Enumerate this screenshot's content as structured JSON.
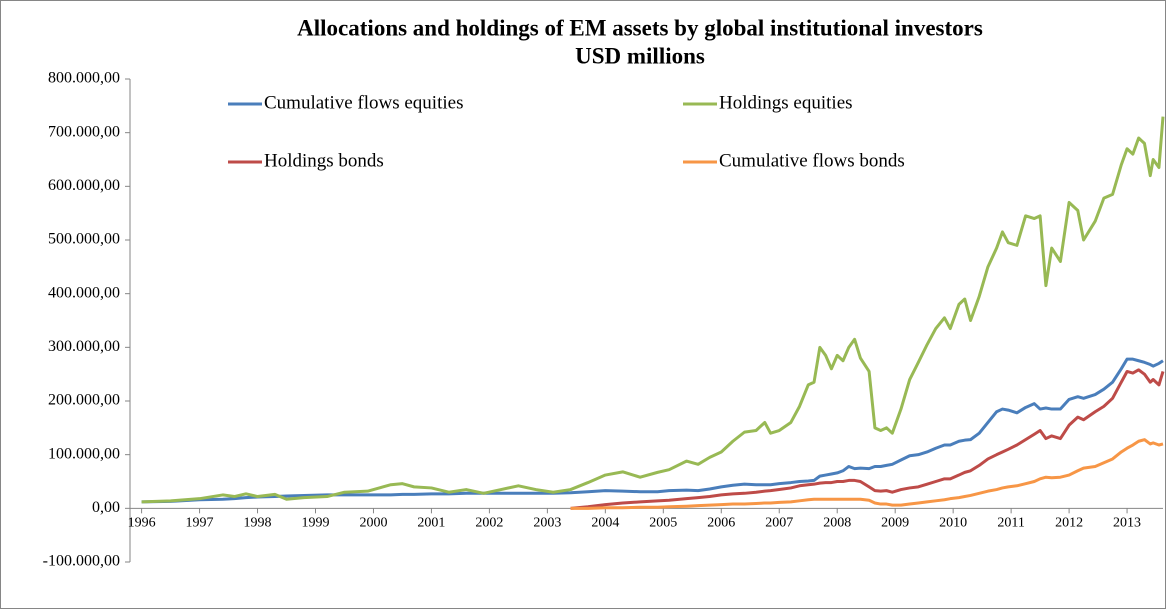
{
  "chart_data": {
    "type": "line",
    "title": "Allocations and holdings of EM assets by global institutional investors",
    "subtitle": "USD millions",
    "x": [
      1996.0,
      1996.5,
      1997.0,
      1997.4,
      1997.6,
      1997.8,
      1998.0,
      1998.3,
      1998.5,
      1998.8,
      1999.2,
      1999.5,
      1999.9,
      2000.3,
      2000.5,
      2000.7,
      2001.0,
      2001.3,
      2001.6,
      2001.9,
      2002.2,
      2002.5,
      2002.8,
      2003.1,
      2003.4,
      2003.7,
      2004.0,
      2004.3,
      2004.6,
      2004.9,
      2005.1,
      2005.4,
      2005.6,
      2005.8,
      2006.0,
      2006.2,
      2006.4,
      2006.6,
      2006.75,
      2006.85,
      2007.0,
      2007.2,
      2007.35,
      2007.5,
      2007.6,
      2007.7,
      2007.8,
      2007.9,
      2008.0,
      2008.1,
      2008.2,
      2008.3,
      2008.4,
      2008.55,
      2008.65,
      2008.75,
      2008.85,
      2008.95,
      2009.1,
      2009.25,
      2009.4,
      2009.55,
      2009.7,
      2009.85,
      2009.95,
      2010.1,
      2010.2,
      2010.3,
      2010.45,
      2010.6,
      2010.75,
      2010.85,
      2010.95,
      2011.1,
      2011.25,
      2011.4,
      2011.5,
      2011.6,
      2011.7,
      2011.85,
      2012.0,
      2012.15,
      2012.25,
      2012.45,
      2012.6,
      2012.75,
      2012.9,
      2013.0,
      2013.1,
      2013.2,
      2013.3,
      2013.4,
      2013.45,
      2013.55,
      2013.62
    ],
    "series": [
      {
        "name": "Cumulative flows equities",
        "color": "#4a7ebb",
        "values": [
          12000,
          13000,
          16000,
          17000,
          18000,
          20000,
          21000,
          22000,
          23000,
          24000,
          25000,
          25000,
          25000,
          25000,
          26000,
          26000,
          27000,
          27000,
          28000,
          28000,
          28000,
          28000,
          28000,
          28000,
          29000,
          31000,
          33000,
          32000,
          31000,
          31000,
          33000,
          34000,
          33000,
          36000,
          40000,
          43000,
          45000,
          44000,
          44000,
          44000,
          46000,
          48000,
          50000,
          51000,
          52000,
          60000,
          62000,
          64000,
          66000,
          70000,
          78000,
          74000,
          75000,
          74000,
          78000,
          78000,
          80000,
          82000,
          90000,
          98000,
          100000,
          105000,
          112000,
          118000,
          118000,
          125000,
          127000,
          128000,
          140000,
          160000,
          180000,
          185000,
          183000,
          178000,
          188000,
          195000,
          185000,
          187000,
          185000,
          185000,
          203000,
          208000,
          205000,
          212000,
          222000,
          235000,
          260000,
          278000,
          278000,
          275000,
          272000,
          268000,
          265000,
          270000,
          275000
        ]
      },
      {
        "name": "Holdings equities",
        "color": "#98b954",
        "values": [
          12000,
          14000,
          18000,
          25000,
          22000,
          27000,
          22000,
          26000,
          17000,
          20000,
          22000,
          30000,
          32000,
          44000,
          46000,
          40000,
          38000,
          30000,
          35000,
          28000,
          35000,
          42000,
          35000,
          30000,
          35000,
          48000,
          62000,
          68000,
          58000,
          67000,
          72000,
          88000,
          82000,
          95000,
          105000,
          125000,
          142000,
          145000,
          160000,
          140000,
          145000,
          160000,
          190000,
          230000,
          235000,
          300000,
          285000,
          260000,
          285000,
          275000,
          300000,
          315000,
          280000,
          255000,
          150000,
          145000,
          150000,
          140000,
          185000,
          240000,
          272000,
          305000,
          335000,
          355000,
          335000,
          380000,
          390000,
          350000,
          395000,
          450000,
          485000,
          515000,
          495000,
          490000,
          545000,
          540000,
          545000,
          415000,
          485000,
          460000,
          570000,
          555000,
          500000,
          535000,
          578000,
          585000,
          640000,
          670000,
          660000,
          690000,
          680000,
          620000,
          650000,
          635000,
          730000
        ]
      },
      {
        "name": "Holdings bonds",
        "color": "#be4b48",
        "values": [
          null,
          null,
          null,
          null,
          null,
          null,
          null,
          null,
          null,
          null,
          null,
          null,
          null,
          null,
          null,
          null,
          null,
          null,
          null,
          null,
          null,
          null,
          null,
          null,
          0,
          3000,
          7000,
          10000,
          12000,
          14000,
          15000,
          18000,
          20000,
          22000,
          25000,
          27000,
          28000,
          30000,
          32000,
          33000,
          35000,
          38000,
          42000,
          44000,
          45000,
          47000,
          48000,
          48000,
          50000,
          50000,
          52000,
          52000,
          50000,
          40000,
          33000,
          32000,
          33000,
          30000,
          35000,
          38000,
          40000,
          45000,
          50000,
          55000,
          55000,
          62000,
          67000,
          70000,
          80000,
          92000,
          100000,
          105000,
          110000,
          118000,
          128000,
          138000,
          145000,
          130000,
          135000,
          130000,
          155000,
          170000,
          165000,
          180000,
          190000,
          205000,
          235000,
          255000,
          252000,
          258000,
          250000,
          235000,
          240000,
          230000,
          255000
        ]
      },
      {
        "name": "Cumulative flows bonds",
        "color": "#f79646",
        "values": [
          null,
          null,
          null,
          null,
          null,
          null,
          null,
          null,
          null,
          null,
          null,
          null,
          null,
          null,
          null,
          null,
          null,
          null,
          null,
          null,
          null,
          null,
          null,
          null,
          0,
          0,
          1000,
          1000,
          2000,
          2000,
          3000,
          4000,
          5000,
          6000,
          7000,
          8000,
          8000,
          9000,
          10000,
          10000,
          11000,
          12000,
          14000,
          16000,
          17000,
          17000,
          17000,
          17000,
          17000,
          17000,
          17000,
          17000,
          17000,
          15000,
          10000,
          8000,
          8000,
          6000,
          6000,
          8000,
          10000,
          12000,
          14000,
          16000,
          18000,
          20000,
          22000,
          24000,
          28000,
          32000,
          35000,
          38000,
          40000,
          42000,
          46000,
          50000,
          55000,
          58000,
          57000,
          58000,
          62000,
          70000,
          75000,
          78000,
          85000,
          92000,
          105000,
          112000,
          118000,
          125000,
          128000,
          120000,
          122000,
          118000,
          120000
        ]
      }
    ],
    "xlim": [
      1995.8,
      2013.62
    ],
    "xticks": [
      1996,
      1997,
      1998,
      1999,
      2000,
      2001,
      2002,
      2003,
      2004,
      2005,
      2006,
      2007,
      2008,
      2009,
      2010,
      2011,
      2012,
      2013
    ],
    "ylim": [
      -100000,
      800000
    ],
    "yticks": [
      {
        "value": -100000,
        "label": "-100.000,00"
      },
      {
        "value": 0,
        "label": "0,00"
      },
      {
        "value": 100000,
        "label": "100.000,00"
      },
      {
        "value": 200000,
        "label": "200.000,00"
      },
      {
        "value": 300000,
        "label": "300.000,00"
      },
      {
        "value": 400000,
        "label": "400.000,00"
      },
      {
        "value": 500000,
        "label": "500.000,00"
      },
      {
        "value": 600000,
        "label": "600.000,00"
      },
      {
        "value": 700000,
        "label": "700.000,00"
      },
      {
        "value": 800000,
        "label": "800.000,00"
      }
    ],
    "grid": false
  }
}
